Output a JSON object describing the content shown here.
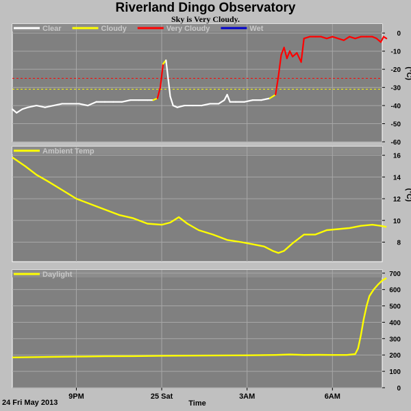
{
  "header": {
    "title": "Riverland Dingo Observatory",
    "subtitle": "Sky is Very Cloudy."
  },
  "footer": {
    "date": "24 Fri May 2013",
    "xlabel": "Time"
  },
  "colors": {
    "panel_bg": "#808080",
    "page_bg": "#c0c0c0",
    "grid": "#a8a8a8",
    "clear": "#ffffff",
    "cloudy": "#ffff00",
    "very_cloudy": "#ff0000",
    "wet": "#0000cc",
    "legend_text": "#c8c8c8"
  },
  "x_axis": {
    "range_hours": [
      18.75,
      7.75
    ],
    "ticks": [
      {
        "hour": 21,
        "label": "9PM"
      },
      {
        "hour": 24,
        "label": "25 Sat"
      },
      {
        "hour": 27,
        "label": "3AM"
      },
      {
        "hour": 30,
        "label": "6AM"
      }
    ]
  },
  "chart_data": [
    {
      "type": "line",
      "ylabel": "(°C)",
      "ylim": [
        -60,
        5
      ],
      "yticks": [
        0,
        -10,
        -20,
        -30,
        -40,
        -50,
        -60
      ],
      "grid": true,
      "legend_placement": "top-left",
      "legend": [
        {
          "name": "Clear",
          "color": "#ffffff"
        },
        {
          "name": "Cloudy",
          "color": "#ffff00"
        },
        {
          "name": "Very Cloudy",
          "color": "#ff0000"
        },
        {
          "name": "Wet",
          "color": "#0000cc"
        }
      ],
      "thresholds": [
        {
          "y": -25,
          "color": "#ff0000"
        },
        {
          "y": -31,
          "color": "#ffff00"
        }
      ],
      "series": [
        {
          "x": [
            18.75,
            18.9,
            19.1,
            19.3,
            19.6,
            19.9,
            20.2,
            20.5,
            20.8,
            21.1,
            21.4,
            21.7,
            22.0,
            22.3,
            22.6,
            22.9,
            23.2,
            23.5,
            23.7,
            23.85,
            23.95,
            24.05,
            24.15,
            24.3,
            24.4,
            24.55,
            24.8,
            25.1,
            25.4,
            25.7,
            26.0,
            26.2,
            26.3,
            26.4,
            26.6,
            26.9,
            27.2,
            27.5,
            27.8,
            28.0,
            28.1,
            28.2,
            28.3,
            28.4,
            28.5,
            28.6,
            28.75,
            28.9,
            29.0,
            29.2,
            29.4,
            29.6,
            29.8,
            30.0,
            30.2,
            30.4,
            30.6,
            30.8,
            31.0,
            31.2,
            31.4,
            31.55,
            31.7,
            31.8,
            31.9
          ],
          "y": [
            -42,
            -44,
            -42,
            -41,
            -40,
            -41,
            -40,
            -39,
            -39,
            -39,
            -40,
            -38,
            -38,
            -38,
            -38,
            -37,
            -37,
            -37,
            -37,
            -36,
            -30,
            -17,
            -15,
            -35,
            -40,
            -41,
            -40,
            -40,
            -40,
            -39,
            -39,
            -37,
            -34,
            -38,
            -38,
            -38,
            -37,
            -37,
            -36,
            -34,
            -24,
            -12,
            -8,
            -14,
            -10,
            -13,
            -11,
            -16,
            -3,
            -2,
            -2,
            -2,
            -3,
            -2,
            -3,
            -4,
            -2,
            -3,
            -2,
            -2,
            -2,
            -3,
            -5,
            -2,
            -3
          ],
          "colors": [
            "#ffffff",
            "#ffffff",
            "#ffffff",
            "#ffffff",
            "#ffffff",
            "#ffffff",
            "#ffffff",
            "#ffffff",
            "#ffffff",
            "#ffffff",
            "#ffffff",
            "#ffffff",
            "#ffffff",
            "#ffffff",
            "#ffffff",
            "#ffffff",
            "#ffffff",
            "#ffffff",
            "#ffffff",
            "#ffff00",
            "#ff0000",
            "#ff0000",
            "#ffff00",
            "#ffffff",
            "#ffffff",
            "#ffffff",
            "#ffffff",
            "#ffffff",
            "#ffffff",
            "#ffffff",
            "#ffffff",
            "#ffffff",
            "#ffffff",
            "#ffffff",
            "#ffffff",
            "#ffffff",
            "#ffffff",
            "#ffffff",
            "#ffffff",
            "#ffff00",
            "#ff0000",
            "#ff0000",
            "#ff0000",
            "#ff0000",
            "#ff0000",
            "#ff0000",
            "#ff0000",
            "#ff0000",
            "#ff0000",
            "#ff0000",
            "#ff0000",
            "#ff0000",
            "#ff0000",
            "#ff0000",
            "#ff0000",
            "#ff0000",
            "#ff0000",
            "#ff0000",
            "#ff0000",
            "#ff0000",
            "#ff0000",
            "#ff0000",
            "#ff0000",
            "#ff0000",
            "#ff0000"
          ]
        }
      ]
    },
    {
      "type": "line",
      "ylabel": "(°C)",
      "ylim": [
        6.2,
        16.8
      ],
      "yticks": [
        16,
        14,
        12,
        10,
        8
      ],
      "grid": true,
      "legend_placement": "top-left",
      "legend": [
        {
          "name": "Ambient Temp",
          "color": "#ffff00"
        }
      ],
      "series": [
        {
          "name": "Ambient Temp",
          "color": "#ffff00",
          "x": [
            18.75,
            19.2,
            19.6,
            20.0,
            20.5,
            21.0,
            21.5,
            22.0,
            22.5,
            23.0,
            23.5,
            24.0,
            24.3,
            24.6,
            24.9,
            25.3,
            25.8,
            26.3,
            26.8,
            27.2,
            27.6,
            27.9,
            28.1,
            28.3,
            28.6,
            29.0,
            29.4,
            29.8,
            30.2,
            30.6,
            31.0,
            31.4,
            31.7,
            31.9
          ],
          "y": [
            15.8,
            15.0,
            14.2,
            13.6,
            12.8,
            12.0,
            11.5,
            11.0,
            10.5,
            10.2,
            9.7,
            9.6,
            9.8,
            10.3,
            9.7,
            9.1,
            8.7,
            8.2,
            8.0,
            7.8,
            7.6,
            7.2,
            7.0,
            7.2,
            7.9,
            8.7,
            8.7,
            9.1,
            9.2,
            9.3,
            9.5,
            9.6,
            9.5,
            9.4
          ]
        }
      ]
    },
    {
      "type": "line",
      "ylim": [
        0,
        720
      ],
      "yticks": [
        700,
        600,
        500,
        400,
        300,
        200,
        100,
        0
      ],
      "grid": true,
      "legend_placement": "top-left",
      "legend": [
        {
          "name": "Daylight",
          "color": "#ffff00"
        }
      ],
      "series": [
        {
          "name": "Daylight",
          "color": "#ffff00",
          "x": [
            18.75,
            20.0,
            21.0,
            22.0,
            23.0,
            24.0,
            25.0,
            26.0,
            27.0,
            28.0,
            28.5,
            29.0,
            29.5,
            30.0,
            30.5,
            30.8,
            30.9,
            31.0,
            31.1,
            31.2,
            31.3,
            31.45,
            31.6,
            31.75,
            31.9
          ],
          "y": [
            185,
            188,
            190,
            192,
            193,
            195,
            196,
            197,
            198,
            200,
            203,
            200,
            201,
            200,
            200,
            205,
            240,
            320,
            420,
            500,
            560,
            600,
            630,
            655,
            670
          ]
        }
      ]
    }
  ]
}
